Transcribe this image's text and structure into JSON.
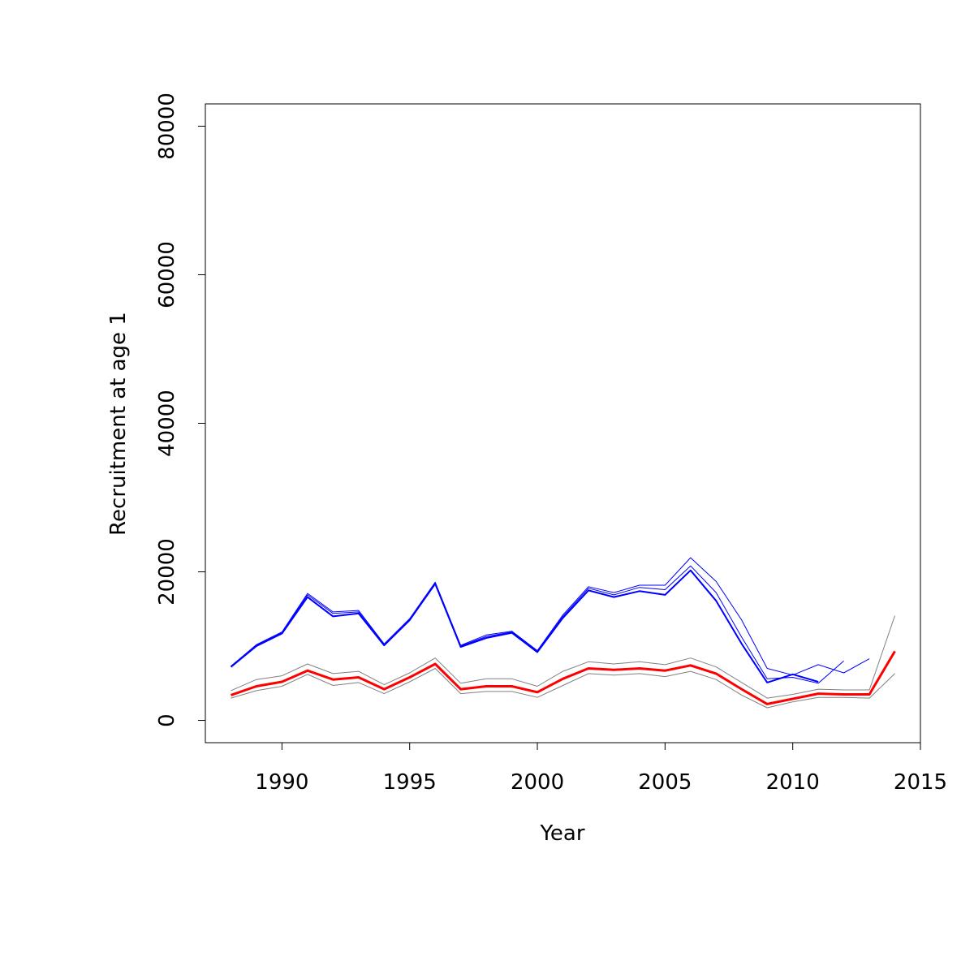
{
  "chart_data": {
    "type": "line",
    "title": "",
    "xlabel": "Year",
    "ylabel": "Recruitment at age 1",
    "xlim": [
      1987,
      2015
    ],
    "ylim": [
      -3000,
      83000
    ],
    "x_ticks": [
      1990,
      1995,
      2000,
      2005,
      2010,
      2015
    ],
    "x_tick_labels": [
      "1990",
      "1995",
      "2000",
      "2005",
      "2010",
      "2015"
    ],
    "y_ticks": [
      0,
      20000,
      40000,
      60000,
      80000
    ],
    "y_tick_labels": [
      "0",
      "20000",
      "40000",
      "60000",
      "80000"
    ],
    "grid": false,
    "legend": "none",
    "series": [
      {
        "color": "#0000ff",
        "width": 1,
        "x": [
          1988,
          1989,
          1990,
          1991,
          1992,
          1993,
          1994,
          1995,
          1996,
          1997,
          1998,
          1999,
          2000,
          2001,
          2002,
          2003,
          2004,
          2005,
          2006,
          2007,
          2008,
          2009,
          2010,
          2011,
          2012,
          2013
        ],
        "values": [
          7300,
          10200,
          11900,
          17100,
          14600,
          14800,
          10300,
          13700,
          18600,
          10100,
          11500,
          12000,
          9400,
          14200,
          18000,
          17200,
          18200,
          18200,
          21900,
          18700,
          13500,
          7000,
          6100,
          7500,
          6400,
          8300
        ]
      },
      {
        "color": "#0000ff",
        "width": 1,
        "x": [
          1988,
          1989,
          1990,
          1991,
          1992,
          1993,
          1994,
          1995,
          1996,
          1997,
          1998,
          1999,
          2000,
          2001,
          2002,
          2003,
          2004,
          2005,
          2006,
          2007,
          2008,
          2009,
          2010,
          2011,
          2012
        ],
        "values": [
          7300,
          10100,
          11800,
          16900,
          14400,
          14600,
          10200,
          13600,
          18500,
          10000,
          11300,
          11900,
          9300,
          14000,
          17800,
          16900,
          17900,
          17600,
          20800,
          17200,
          11200,
          5600,
          5800,
          5000,
          8000
        ]
      },
      {
        "color": "#0000ff",
        "width": 2,
        "x": [
          1988,
          1989,
          1990,
          1991,
          1992,
          1993,
          1994,
          1995,
          1996,
          1997,
          1998,
          1999,
          2000,
          2001,
          2002,
          2003,
          2004,
          2005,
          2006,
          2007,
          2008,
          2009,
          2010,
          2011
        ],
        "values": [
          7200,
          10000,
          11700,
          16600,
          14000,
          14400,
          10100,
          13500,
          18400,
          9900,
          11100,
          11800,
          9200,
          13800,
          17500,
          16600,
          17400,
          16900,
          20200,
          16100,
          10300,
          5100,
          6200,
          5200
        ]
      },
      {
        "color": "#808080",
        "width": 1,
        "x": [
          1988,
          1989,
          1990,
          1991,
          1992,
          1993,
          1994,
          1995,
          1996,
          1997,
          1998,
          1999,
          2000,
          2001,
          2002,
          2003,
          2004,
          2005,
          2006,
          2007,
          2008,
          2009,
          2010,
          2011,
          2012,
          2013,
          2014
        ],
        "values": [
          4000,
          5500,
          6000,
          7600,
          6300,
          6600,
          4800,
          6400,
          8400,
          5000,
          5600,
          5600,
          4600,
          6600,
          7900,
          7600,
          7900,
          7500,
          8400,
          7200,
          5100,
          3000,
          3500,
          4200,
          4100,
          4100,
          14100
        ]
      },
      {
        "color": "#808080",
        "width": 1,
        "x": [
          1988,
          1989,
          1990,
          1991,
          1992,
          1993,
          1994,
          1995,
          1996,
          1997,
          1998,
          1999,
          2000,
          2001,
          2002,
          2003,
          2004,
          2005,
          2006,
          2007,
          2008,
          2009,
          2010,
          2011,
          2012,
          2013,
          2014
        ],
        "values": [
          3000,
          4000,
          4600,
          6200,
          4700,
          5100,
          3600,
          5200,
          7000,
          3600,
          3900,
          3900,
          3100,
          4700,
          6300,
          6100,
          6300,
          5900,
          6600,
          5500,
          3400,
          1700,
          2500,
          3100,
          3100,
          3000,
          6300
        ]
      },
      {
        "color": "#ff0000",
        "width": 3,
        "x": [
          1988,
          1989,
          1990,
          1991,
          1992,
          1993,
          1994,
          1995,
          1996,
          1997,
          1998,
          1999,
          2000,
          2001,
          2002,
          2003,
          2004,
          2005,
          2006,
          2007,
          2008,
          2009,
          2010,
          2011,
          2012,
          2013,
          2014
        ],
        "values": [
          3400,
          4600,
          5200,
          6700,
          5500,
          5800,
          4200,
          5800,
          7600,
          4200,
          4600,
          4600,
          3800,
          5600,
          7000,
          6800,
          7000,
          6700,
          7400,
          6300,
          4200,
          2200,
          2900,
          3600,
          3500,
          3500,
          9300
        ]
      }
    ]
  }
}
